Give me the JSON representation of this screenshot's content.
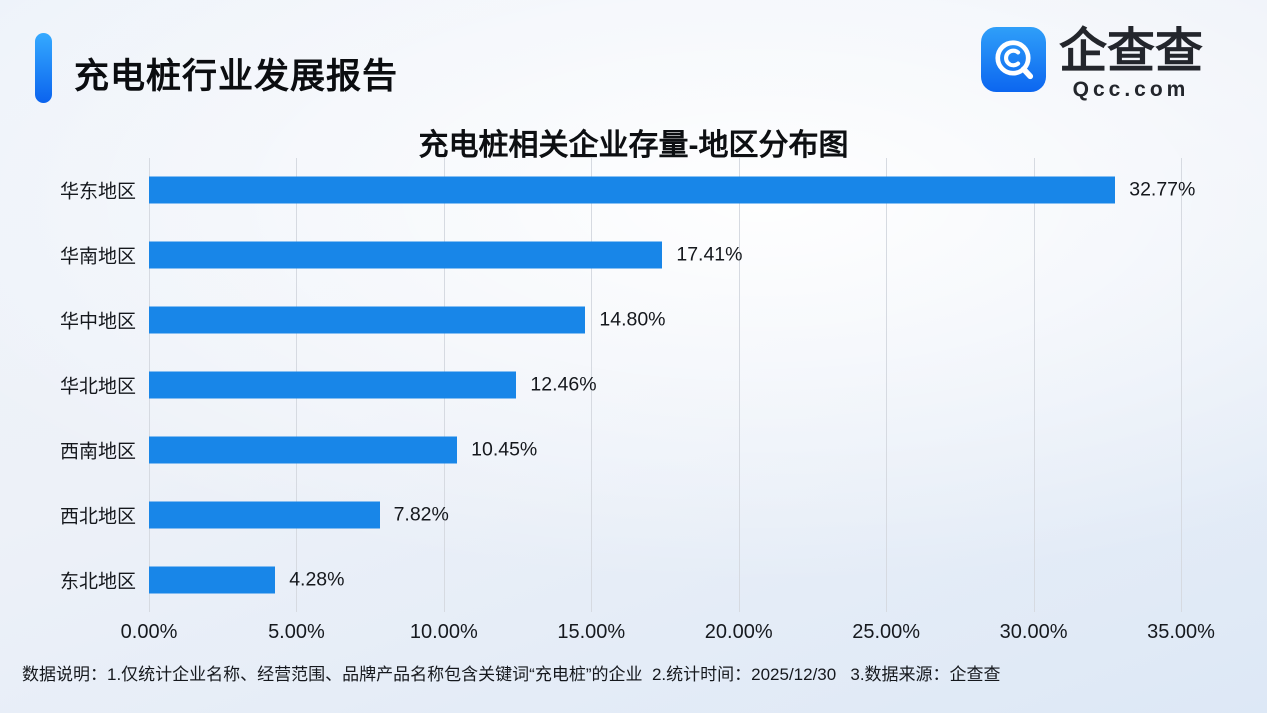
{
  "header": {
    "title": "充电桩行业发展报告",
    "logo": {
      "name": "企查查",
      "domain": "Qcc.com"
    }
  },
  "chart_data": {
    "type": "bar",
    "orientation": "horizontal",
    "title": "充电桩相关企业存量-地区分布图",
    "categories": [
      "华东地区",
      "华南地区",
      "华中地区",
      "华北地区",
      "西南地区",
      "西北地区",
      "东北地区"
    ],
    "values": [
      32.77,
      17.41,
      14.8,
      12.46,
      10.45,
      7.82,
      4.28
    ],
    "value_labels": [
      "32.77%",
      "17.41%",
      "14.80%",
      "12.46%",
      "10.45%",
      "7.82%",
      "4.28%"
    ],
    "x_ticks": [
      "0.00%",
      "5.00%",
      "10.00%",
      "15.00%",
      "20.00%",
      "25.00%",
      "30.00%",
      "35.00%"
    ],
    "xlim": [
      0,
      35
    ],
    "xlabel": "",
    "ylabel": "",
    "grid": true,
    "legend": false,
    "bar_color": "#1886e8",
    "gridline_color": "#d6dae1"
  },
  "footer": {
    "note": "数据说明：1.仅统计企业名称、经营范围、品牌产品名称包含关键词“充电桩”的企业  2.统计时间：2025/12/30   3.数据来源：企查查"
  }
}
